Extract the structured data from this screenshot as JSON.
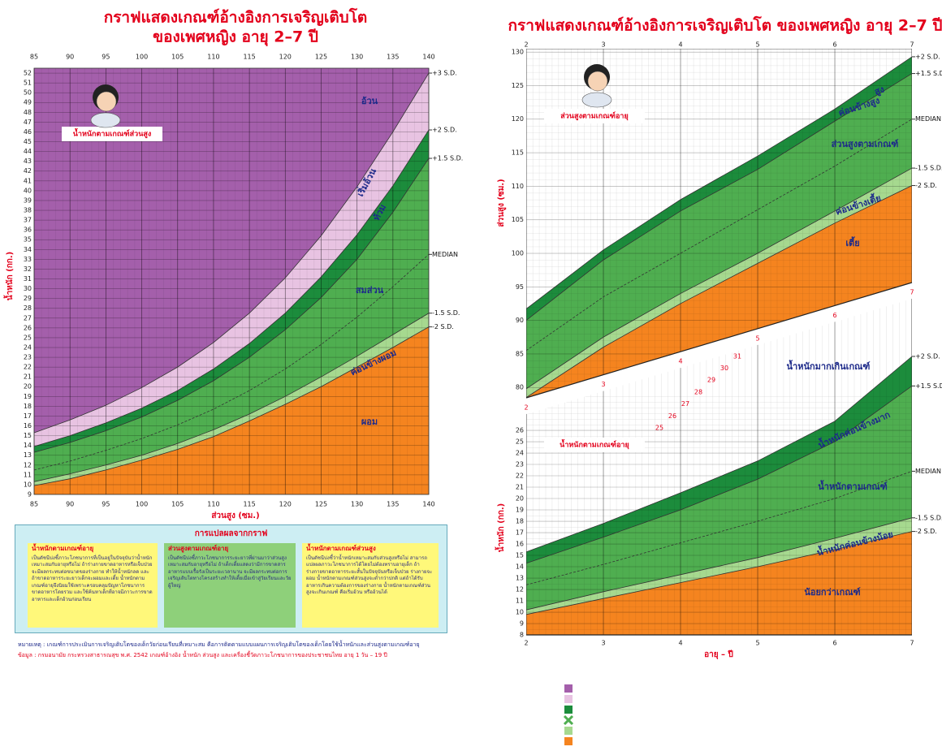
{
  "chart_data": [
    {
      "type": "area",
      "title": "กราฟแสดงเกณฑ์อ้างอิงการเจริญเติบโต",
      "subtitle": "ของเพศหญิง อายุ 2–7 ปี",
      "x_label": "ส่วนสูง (ซม.)",
      "y_label": "น้ำหนัก (กก.)",
      "annotation": "น้ำหนักตามเกณฑ์ส่วนสูง",
      "x": [
        85,
        90,
        95,
        100,
        105,
        110,
        115,
        120,
        125,
        130,
        135,
        140
      ],
      "xlim": [
        85,
        140
      ],
      "xticks": [
        85,
        90,
        95,
        100,
        105,
        110,
        115,
        120,
        125,
        130,
        135,
        140
      ],
      "ylim": [
        9,
        52.5
      ],
      "yticks": [
        9,
        10,
        11,
        12,
        13,
        14,
        15,
        16,
        17,
        18,
        19,
        20,
        21,
        22,
        23,
        24,
        25,
        26,
        27,
        28,
        29,
        30,
        31,
        32,
        33,
        34,
        35,
        36,
        37,
        38,
        39,
        40,
        41,
        42,
        43,
        44,
        45,
        46,
        47,
        48,
        49,
        50,
        51,
        52
      ],
      "grid": true,
      "top_fill": "#a45fab",
      "series": [
        {
          "name": "+3 S.D.",
          "color": "#333333",
          "fill": "#e8c3e2",
          "values": [
            15.3,
            16.6,
            18.1,
            19.9,
            22,
            24.5,
            27.5,
            31.1,
            35.4,
            40.4,
            46,
            52
          ]
        },
        {
          "name": "+2 S.D.",
          "color": "#333333",
          "fill": "#1c8c3c",
          "values": [
            13.9,
            15,
            16.3,
            17.8,
            19.6,
            21.8,
            24.4,
            27.5,
            31.2,
            35.5,
            40.5,
            46.2
          ]
        },
        {
          "name": "+1.5 S.D.",
          "color": "#333333",
          "fill": "#4fae50",
          "values": [
            13.3,
            14.3,
            15.5,
            16.9,
            18.6,
            20.6,
            23,
            25.8,
            29.1,
            33,
            37.8,
            43.3
          ]
        },
        {
          "name": "MEDIAN",
          "color": "#333333",
          "fill": "#4fae50",
          "dashed": true,
          "values": [
            11.5,
            12.4,
            13.5,
            14.7,
            16.1,
            17.7,
            19.6,
            21.8,
            24.3,
            27.1,
            30.2,
            33.5
          ]
        },
        {
          "name": "-1.5 S.D.",
          "color": "#333333",
          "fill": "#a6d98f",
          "values": [
            10.3,
            11.1,
            12,
            13,
            14.2,
            15.6,
            17.2,
            19,
            21,
            23.1,
            25.3,
            27.5
          ]
        },
        {
          "name": "-2 S.D.",
          "color": "#333333",
          "fill": "#f5841f",
          "values": [
            9.9,
            10.6,
            11.5,
            12.5,
            13.6,
            14.9,
            16.5,
            18.2,
            20,
            22,
            24,
            26.1
          ]
        }
      ],
      "zones": [
        "อ้วน",
        "เริ่มอ้วน",
        "ท้วม",
        "สมส่วน",
        "ค่อนข้างผอม",
        "ผอม"
      ]
    },
    {
      "type": "area",
      "title": "กราฟแสดงเกณฑ์อ้างอิงการเจริญเติบโต ของเพศหญิง อายุ 2–7 ปี",
      "y_label": "ส่วนสูง (ซม.)",
      "annotation": "ส่วนสูงตามเกณฑ์อายุ",
      "x": [
        2,
        3,
        4,
        5,
        6,
        7
      ],
      "xlim": [
        2,
        7
      ],
      "xticks": [
        2,
        3,
        4,
        5,
        6,
        7
      ],
      "ylim": [
        77,
        130.5
      ],
      "yticks": [
        80,
        85,
        90,
        95,
        100,
        105,
        110,
        115,
        120,
        125,
        130
      ],
      "grid": true,
      "top_fill": "#ffffff",
      "series": [
        {
          "name": "+2 S.D.",
          "color": "#333333",
          "fill": "#1c8c3c",
          "values": [
            91.7,
            100.5,
            108,
            114.5,
            121.5,
            129.3
          ]
        },
        {
          "name": "+1.5 S.D.",
          "color": "#333333",
          "fill": "#4fae50",
          "values": [
            90,
            99,
            106.3,
            112.5,
            119.7,
            126.8
          ]
        },
        {
          "name": "MEDIAN",
          "color": "#333333",
          "fill": "#4fae50",
          "dashed": true,
          "values": [
            85.5,
            93.5,
            100,
            106.5,
            113,
            120
          ]
        },
        {
          "name": "-1.5 S.D.",
          "color": "#333333",
          "fill": "#a6d98f",
          "values": [
            79.8,
            87.5,
            94,
            100,
            106.3,
            112.7
          ]
        },
        {
          "name": "-2 S.D.",
          "color": "#333333",
          "fill": "#f5841f",
          "values": [
            78.5,
            86,
            92.5,
            98.5,
            104.5,
            110.1
          ]
        }
      ],
      "zones": [
        "สูง",
        "ค่อนข้างสูง",
        "ส่วนสูงตามเกณฑ์",
        "ค่อนข้างเตี้ย",
        "เตี้ย"
      ]
    },
    {
      "type": "area",
      "x_label": "อายุ – ปี",
      "y_label": "น้ำหนัก (กก.)",
      "annotation": "น้ำหนักตามเกณฑ์อายุ",
      "x": [
        2,
        3,
        4,
        5,
        6,
        7
      ],
      "xlim": [
        2,
        7
      ],
      "xticks": [
        2,
        3,
        4,
        5,
        6,
        7
      ],
      "ylim": [
        8,
        38
      ],
      "yticks": [
        8,
        9,
        10,
        11,
        12,
        13,
        14,
        15,
        16,
        17,
        18,
        19,
        20,
        21,
        22,
        23,
        24,
        25,
        26
      ],
      "stair_ticks": [
        25,
        26,
        27,
        28,
        29,
        30,
        31
      ],
      "grid": true,
      "top_fill": "#ffffff",
      "series": [
        {
          "name": "+2 S.D.",
          "color": "#333333",
          "fill": "#1c8c3c",
          "values": [
            15.3,
            17.8,
            20.5,
            23.3,
            26.8,
            32.5
          ]
        },
        {
          "name": "+1.5 S.D.",
          "color": "#333333",
          "fill": "#4fae50",
          "values": [
            14.3,
            16.6,
            19,
            21.7,
            25,
            29.9
          ]
        },
        {
          "name": "MEDIAN",
          "color": "#333333",
          "fill": "#4fae50",
          "dashed": true,
          "values": [
            12.4,
            14.2,
            16.1,
            18,
            20,
            22.4
          ]
        },
        {
          "name": "-1.5 S.D.",
          "color": "#333333",
          "fill": "#a6d98f",
          "values": [
            10.2,
            11.8,
            13.3,
            14.8,
            16.5,
            18.3
          ]
        },
        {
          "name": "-2 S.D.",
          "color": "#333333",
          "fill": "#f5841f",
          "values": [
            9.8,
            11.2,
            12.6,
            14,
            15.5,
            17.1
          ]
        }
      ],
      "zones": [
        "น้ำหนักมากเกินเกณฑ์",
        "น้ำหนักค่อนข้างมาก",
        "น้ำหนักตามเกณฑ์",
        "น้ำหนักค่อนข้างน้อย",
        "น้อยกว่าเกณฑ์"
      ]
    }
  ],
  "interpretation": {
    "title": "การแปลผลจากกราฟ",
    "boxes": [
      {
        "heading": "น้ำหนักตามเกณฑ์อายุ",
        "body": "เป็นดัชนีบ่งชี้ภาวะโภชนาการที่เป็นอยู่ในปัจจุบันว่าน้ำหนักเหมาะสมกับอายุหรือไม่ ถ้าร่างกายขาดอาหารหรือเจ็บป่วยจะมีผลกระทบต่อขนาดของร่างกาย ทำให้น้ำหนักลด และถ้าขาดอาหารระยะยาวเด็กจะผอมและเตี้ย น้ำหนักตามเกณฑ์อายุจึงนิยมใช้เพราะครอบคลุมปัญหาโภชนาการขาดอาหารโดยรวม และใช้ค้นหาเด็กที่อาจมีภาวะการขาดอาหารและเด็กอ้วนก่อนเรียน"
      },
      {
        "heading": "ส่วนสูงตามเกณฑ์อายุ",
        "body": "เป็นดัชนีบ่งชี้ภาวะโภชนาการระยะยาวที่ผ่านมาว่าส่วนสูงเหมาะสมกับอายุหรือไม่ ถ้าเด็กเตี้ยแสดงว่ามีการขาดสารอาหารแบบเรื้อรังเป็นระยะเวลานาน จะมีผลกระทบต่อการเจริญเติบโตทางโครงสร้างทำให้เตี้ยเมื่อเข้าสู่วัยเรียนและวัยผู้ใหญ่"
      },
      {
        "heading": "น้ำหนักตามเกณฑ์ส่วนสูง",
        "body": "เป็นดัชนีบ่งชี้ว่าน้ำหนักเหมาะสมกับส่วนสูงหรือไม่ สามารถแปลผลภาวะโภชนาการได้โดยไม่ต้องทราบอายุเด็ก ถ้าร่างกายขาดอาหารระยะสั้นในปัจจุบันหรือเจ็บป่วย ร่างกายจะผอม น้ำหนักตามเกณฑ์ส่วนสูงจะต่ำกว่าปกติ แต่ถ้าได้รับอาหารเกินความต้องการของร่างกาย น้ำหนักตามเกณฑ์ส่วนสูงจะเกินเกณฑ์ คือเริ่มอ้วน หรืออ้วนได้"
      }
    ]
  },
  "footnote": "หมายเหตุ : เกณฑ์การประเมินการเจริญเติบโตของเด็กวัยก่อนเรียนที่เหมาะสม คือการติดตามแบบแผนการเจริญเติบโตของเด็กโดยใช้น้ำหนักและส่วนสูงตามเกณฑ์อายุ",
  "source": "ข้อมูล : กรมอนามัย กระทรวงสาธารณสุข พ.ศ. 2542 เกณฑ์อ้างอิง น้ำหนัก ส่วนสูง และเครื่องชี้วัดภาวะโภชนาการของประชาชนไทย อายุ 1 วัน – 19 ปี"
}
